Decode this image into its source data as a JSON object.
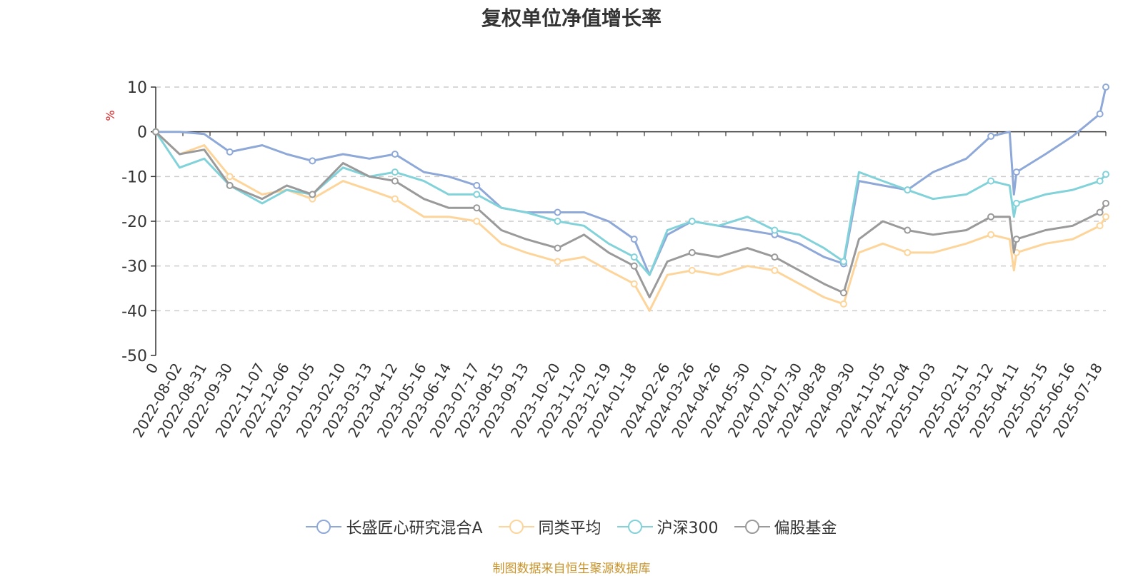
{
  "chart_data": {
    "type": "line",
    "title": "复权单位净值增长率",
    "ylabel": "%",
    "ylim": [
      -50,
      10
    ],
    "yticks": [
      10,
      0,
      -10,
      -20,
      -30,
      -40,
      -50
    ],
    "grid": true,
    "legend_position": "bottom",
    "x_first_label": "0",
    "x_labels": [
      "2022-08-02",
      "2022-08-31",
      "2022-09-30",
      "2022-11-07",
      "2022-12-06",
      "2023-01-05",
      "2023-02-10",
      "2023-03-13",
      "2023-04-12",
      "2023-05-16",
      "2023-06-14",
      "2023-07-17",
      "2023-08-15",
      "2023-09-13",
      "2023-10-20",
      "2023-11-20",
      "2023-12-19",
      "2024-01-18",
      "2024-02-26",
      "2024-03-26",
      "2024-04-26",
      "2024-05-30",
      "2024-07-01",
      "2024-07-30",
      "2024-08-28",
      "2024-09-30",
      "2024-11-05",
      "2024-12-04",
      "2025-01-03",
      "2025-02-11",
      "2025-03-12",
      "2025-04-11",
      "2025-05-15",
      "2025-06-16",
      "2025-07-18"
    ],
    "x": [
      "2022-07-05",
      "2022-08-02",
      "2022-08-31",
      "2022-09-30",
      "2022-11-07",
      "2022-12-06",
      "2023-01-05",
      "2023-02-10",
      "2023-03-13",
      "2023-04-12",
      "2023-05-16",
      "2023-06-14",
      "2023-07-17",
      "2023-08-15",
      "2023-09-13",
      "2023-10-20",
      "2023-11-20",
      "2023-12-19",
      "2024-01-18",
      "2024-02-05",
      "2024-02-26",
      "2024-03-26",
      "2024-04-26",
      "2024-05-30",
      "2024-07-01",
      "2024-07-30",
      "2024-08-28",
      "2024-09-20",
      "2024-10-08",
      "2024-11-05",
      "2024-12-04",
      "2025-01-03",
      "2025-02-11",
      "2025-03-12",
      "2025-04-03",
      "2025-04-08",
      "2025-04-11",
      "2025-05-15",
      "2025-06-16",
      "2025-07-18",
      "2025-07-25"
    ],
    "series": [
      {
        "name": "长盛匠心研究混合A",
        "color": "#8ea8d8",
        "values": [
          0,
          0,
          -0.5,
          -4.5,
          -3,
          -5,
          -6.5,
          -5,
          -6,
          -5,
          -9,
          -10,
          -12,
          -17,
          -18,
          -18,
          -18,
          -20,
          -24,
          -32,
          -23,
          -20,
          -21,
          -22,
          -23,
          -25,
          -28,
          -29.5,
          -11,
          -12,
          -13,
          -9,
          -6,
          -1,
          0,
          -14,
          -9,
          -5,
          -1,
          4,
          10
        ]
      },
      {
        "name": "同类平均",
        "color": "#fdd59b",
        "values": [
          0,
          -5,
          -3,
          -10,
          -14,
          -13,
          -15,
          -11,
          -13,
          -15,
          -19,
          -19,
          -20,
          -25,
          -27,
          -29,
          -28,
          -31,
          -34,
          -40,
          -32,
          -31,
          -32,
          -30,
          -31,
          -34,
          -37,
          -38.5,
          -27,
          -25,
          -27,
          -27,
          -25,
          -23,
          -24,
          -31,
          -27,
          -25,
          -24,
          -21,
          -19
        ]
      },
      {
        "name": "沪深300",
        "color": "#82d2da",
        "values": [
          0,
          -8,
          -6,
          -12,
          -16,
          -13,
          -14,
          -8,
          -10,
          -9,
          -11,
          -14,
          -14,
          -17,
          -18,
          -20,
          -21,
          -25,
          -28,
          -32,
          -22,
          -20,
          -21,
          -19,
          -22,
          -23,
          -26,
          -29,
          -9,
          -11,
          -13,
          -15,
          -14,
          -11,
          -12,
          -19,
          -16,
          -14,
          -13,
          -11,
          -9.5
        ]
      },
      {
        "name": "偏股基金",
        "color": "#9a9a9a",
        "values": [
          0,
          -5,
          -4,
          -12,
          -15,
          -12,
          -14,
          -7,
          -10,
          -11,
          -15,
          -17,
          -17,
          -22,
          -24,
          -26,
          -23,
          -27,
          -30,
          -37,
          -29,
          -27,
          -28,
          -26,
          -28,
          -31,
          -34,
          -36,
          -24,
          -20,
          -22,
          -23,
          -22,
          -19,
          -19,
          -27,
          -24,
          -22,
          -21,
          -18,
          -16
        ]
      }
    ]
  },
  "source_note": "制图数据来自恒生聚源数据库"
}
